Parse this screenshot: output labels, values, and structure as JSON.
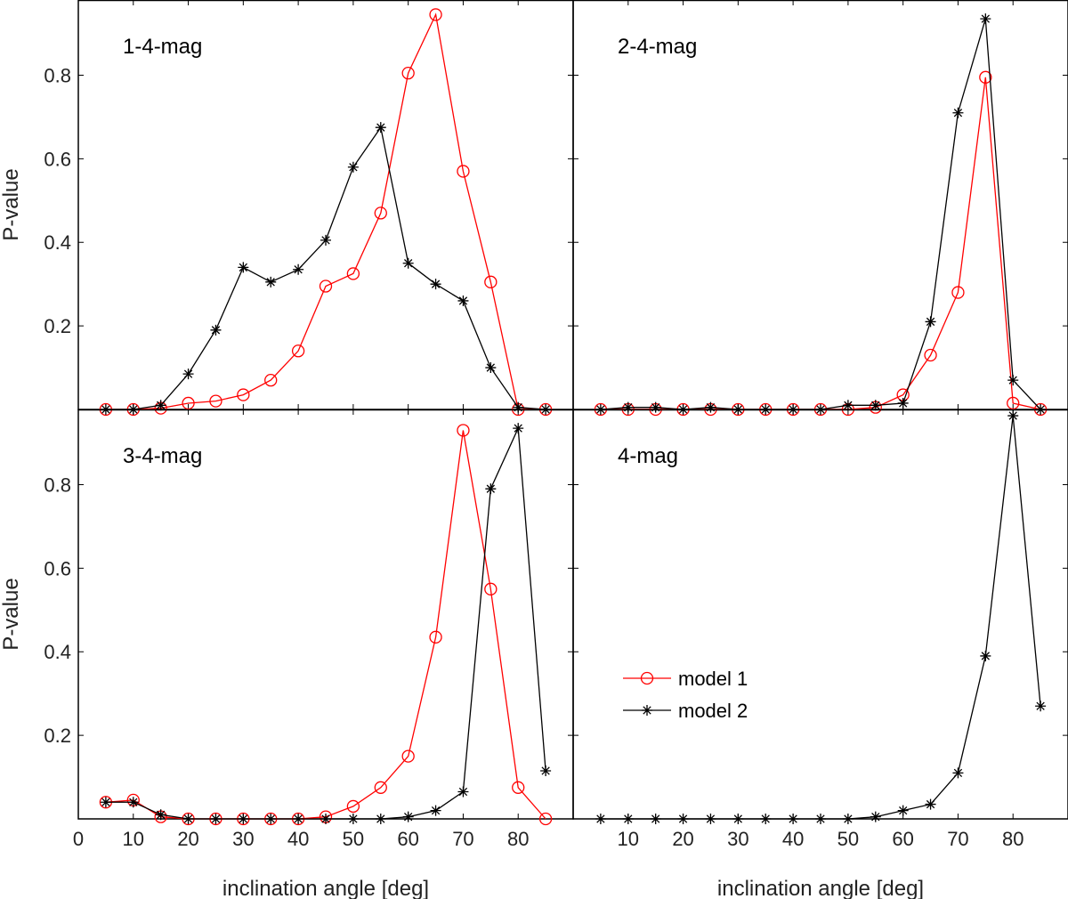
{
  "chart_data": {
    "type": "line",
    "layout": "2x2 panels sharing axes",
    "xlabel": "inclination angle [deg]",
    "ylabel": "P-value",
    "xlim": [
      0,
      90
    ],
    "ylim": [
      0,
      1.0
    ],
    "colors": {
      "model1": "#ff0000",
      "model2": "#000000",
      "axis": "#000000"
    },
    "x": [
      5,
      10,
      15,
      20,
      25,
      30,
      35,
      40,
      45,
      50,
      55,
      60,
      65,
      70,
      75,
      80,
      85
    ],
    "legend": {
      "location": "lower-left of panel 4-mag",
      "entries": [
        {
          "label": "model 1",
          "marker": "circle",
          "color": "#ff0000"
        },
        {
          "label": "model 2",
          "marker": "asterisk",
          "color": "#000000"
        }
      ]
    },
    "panels": [
      {
        "title": "1-4-mag",
        "position": "top-left",
        "yticks": [
          "0.2",
          "0.4",
          "0.6",
          "0.8"
        ],
        "xticks": [],
        "series": [
          {
            "name": "model 1",
            "values": [
              0.0,
              0.0,
              0.003,
              0.015,
              0.02,
              0.035,
              0.07,
              0.14,
              0.295,
              0.325,
              0.47,
              0.805,
              0.945,
              0.57,
              0.305,
              0.0,
              0.0
            ]
          },
          {
            "name": "model 2",
            "values": [
              0.0,
              0.0,
              0.01,
              0.085,
              0.19,
              0.34,
              0.305,
              0.335,
              0.405,
              0.58,
              0.675,
              0.35,
              0.3,
              0.26,
              0.1,
              0.005,
              0.0
            ]
          }
        ]
      },
      {
        "title": "2-4-mag",
        "position": "top-right",
        "yticks": [],
        "xticks": [],
        "series": [
          {
            "name": "model 1",
            "values": [
              0.0,
              0.0,
              0.0,
              0.0,
              0.0,
              0.0,
              0.0,
              0.0,
              0.0,
              0.0,
              0.005,
              0.035,
              0.13,
              0.28,
              0.795,
              0.015,
              0.0
            ]
          },
          {
            "name": "model 2",
            "values": [
              0.0,
              0.005,
              0.005,
              0.0,
              0.005,
              0.0,
              0.0,
              0.0,
              0.0,
              0.01,
              0.01,
              0.015,
              0.21,
              0.71,
              0.935,
              0.07,
              0.0
            ]
          }
        ]
      },
      {
        "title": "3-4-mag",
        "position": "bottom-left",
        "yticks": [
          "0.2",
          "0.4",
          "0.6",
          "0.8"
        ],
        "xticks": [
          "0",
          "10",
          "20",
          "30",
          "40",
          "50",
          "60",
          "70",
          "80"
        ],
        "series": [
          {
            "name": "model 1",
            "values": [
              0.04,
              0.045,
              0.005,
              0.0,
              0.0,
              0.0,
              0.0,
              0.0,
              0.005,
              0.03,
              0.075,
              0.15,
              0.435,
              0.93,
              0.55,
              0.075,
              0.0
            ]
          },
          {
            "name": "model 2",
            "values": [
              0.04,
              0.04,
              0.01,
              0.0,
              0.0,
              0.0,
              0.0,
              0.0,
              0.0,
              0.0,
              0.0,
              0.005,
              0.02,
              0.065,
              0.79,
              0.935,
              0.115
            ]
          }
        ]
      },
      {
        "title": "4-mag",
        "position": "bottom-right",
        "yticks": [],
        "xticks": [
          "10",
          "20",
          "30",
          "40",
          "50",
          "60",
          "70",
          "80"
        ],
        "series": [
          {
            "name": "model 2",
            "values": [
              0.0,
              0.0,
              0.0,
              0.0,
              0.0,
              0.0,
              0.0,
              0.0,
              0.0,
              0.0,
              0.005,
              0.02,
              0.035,
              0.11,
              0.39,
              0.965,
              0.27
            ]
          }
        ]
      }
    ]
  }
}
